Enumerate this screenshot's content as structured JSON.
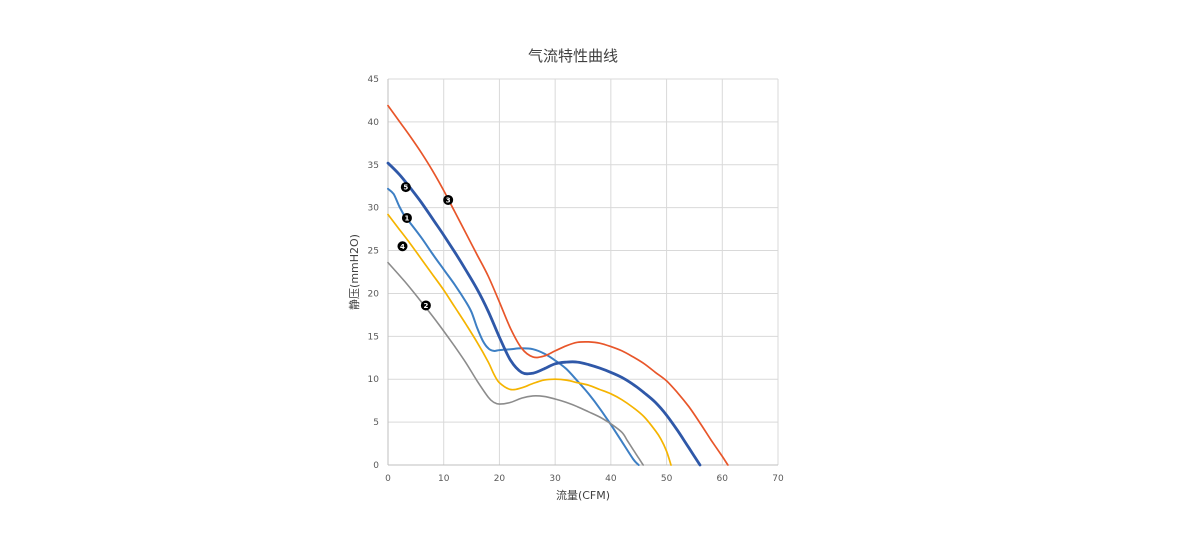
{
  "chart_data": {
    "type": "line",
    "title": "气流特性曲线",
    "xlabel": "流量(CFM)",
    "ylabel": "静压(mmH2O)",
    "xlim": [
      0,
      70
    ],
    "ylim": [
      0,
      45
    ],
    "x_ticks": [
      "0",
      "10",
      "20",
      "30",
      "40",
      "50",
      "60",
      "70"
    ],
    "y_ticks": [
      "0",
      "5",
      "10",
      "15",
      "20",
      "25",
      "30",
      "35",
      "40",
      "45"
    ],
    "grid": true,
    "legend": "none",
    "series": [
      {
        "marker": "1",
        "color": "#3d7fc4",
        "points": [
          [
            0,
            32.2
          ],
          [
            1,
            31.6
          ],
          [
            2,
            30.2
          ],
          [
            3,
            29
          ],
          [
            4,
            28.2
          ],
          [
            6,
            26.5
          ],
          [
            8,
            24.6
          ],
          [
            10,
            22.8
          ],
          [
            12,
            21
          ],
          [
            14,
            19
          ],
          [
            15,
            17.8
          ],
          [
            16,
            16
          ],
          [
            17,
            14.5
          ],
          [
            18,
            13.6
          ],
          [
            19,
            13.3
          ],
          [
            20,
            13.4
          ],
          [
            22,
            13.5
          ],
          [
            24,
            13.6
          ],
          [
            26,
            13.5
          ],
          [
            28,
            13
          ],
          [
            30,
            12.2
          ],
          [
            32,
            11.2
          ],
          [
            34,
            9.8
          ],
          [
            36,
            8.3
          ],
          [
            38,
            6.6
          ],
          [
            40,
            4.7
          ],
          [
            42,
            2.7
          ],
          [
            44,
            0.7
          ],
          [
            45,
            0
          ]
        ]
      },
      {
        "marker": "2",
        "color": "#8c8c8c",
        "points": [
          [
            0,
            23.6
          ],
          [
            3,
            21.4
          ],
          [
            6,
            19
          ],
          [
            9,
            16.5
          ],
          [
            12,
            13.8
          ],
          [
            14,
            11.9
          ],
          [
            16,
            9.8
          ],
          [
            18,
            7.9
          ],
          [
            19,
            7.3
          ],
          [
            20,
            7.1
          ],
          [
            22,
            7.3
          ],
          [
            24,
            7.8
          ],
          [
            26,
            8.05
          ],
          [
            28,
            8
          ],
          [
            30,
            7.7
          ],
          [
            32,
            7.3
          ],
          [
            34,
            6.8
          ],
          [
            36,
            6.2
          ],
          [
            38,
            5.6
          ],
          [
            40,
            4.8
          ],
          [
            42,
            3.8
          ],
          [
            43,
            2.8
          ],
          [
            44,
            1.8
          ],
          [
            45,
            0.8
          ],
          [
            45.8,
            0
          ]
        ]
      },
      {
        "marker": "3",
        "color": "#e8562a",
        "points": [
          [
            0,
            41.9
          ],
          [
            2,
            40.1
          ],
          [
            4,
            38.3
          ],
          [
            6,
            36.4
          ],
          [
            8,
            34.3
          ],
          [
            10,
            32
          ],
          [
            12,
            29.5
          ],
          [
            14,
            27
          ],
          [
            16,
            24.5
          ],
          [
            18,
            22
          ],
          [
            20,
            19
          ],
          [
            22,
            15.9
          ],
          [
            24,
            13.6
          ],
          [
            26,
            12.6
          ],
          [
            28,
            12.7
          ],
          [
            30,
            13.3
          ],
          [
            32,
            13.9
          ],
          [
            34,
            14.3
          ],
          [
            36,
            14.35
          ],
          [
            38,
            14.2
          ],
          [
            40,
            13.8
          ],
          [
            42,
            13.3
          ],
          [
            44,
            12.6
          ],
          [
            46,
            11.8
          ],
          [
            48,
            10.8
          ],
          [
            50,
            9.8
          ],
          [
            52,
            8.4
          ],
          [
            54,
            6.8
          ],
          [
            56,
            4.9
          ],
          [
            58,
            2.9
          ],
          [
            60,
            1
          ],
          [
            61,
            0
          ]
        ]
      },
      {
        "marker": "4",
        "color": "#f5b400",
        "points": [
          [
            0,
            29.2
          ],
          [
            2,
            27.5
          ],
          [
            4,
            25.8
          ],
          [
            6,
            24
          ],
          [
            8,
            22.2
          ],
          [
            10,
            20.4
          ],
          [
            12,
            18.4
          ],
          [
            14,
            16.4
          ],
          [
            16,
            14.3
          ],
          [
            18,
            12
          ],
          [
            19,
            10.6
          ],
          [
            20,
            9.6
          ],
          [
            22,
            8.8
          ],
          [
            24,
            9
          ],
          [
            26,
            9.5
          ],
          [
            28,
            9.9
          ],
          [
            30,
            10
          ],
          [
            32,
            9.9
          ],
          [
            34,
            9.6
          ],
          [
            36,
            9.3
          ],
          [
            38,
            8.8
          ],
          [
            40,
            8.3
          ],
          [
            42,
            7.6
          ],
          [
            44,
            6.7
          ],
          [
            46,
            5.6
          ],
          [
            48,
            4
          ],
          [
            49,
            3
          ],
          [
            50,
            1.6
          ],
          [
            50.8,
            0
          ]
        ]
      },
      {
        "marker": "5",
        "color": "#2f58a8",
        "points": [
          [
            0,
            35.2
          ],
          [
            2,
            33.9
          ],
          [
            4,
            32.3
          ],
          [
            6,
            30.6
          ],
          [
            8,
            28.7
          ],
          [
            10,
            26.8
          ],
          [
            12,
            24.8
          ],
          [
            14,
            22.7
          ],
          [
            16,
            20.5
          ],
          [
            18,
            17.9
          ],
          [
            20,
            14.9
          ],
          [
            22,
            12.2
          ],
          [
            24,
            10.8
          ],
          [
            26,
            10.7
          ],
          [
            28,
            11.2
          ],
          [
            30,
            11.8
          ],
          [
            32,
            12
          ],
          [
            34,
            12
          ],
          [
            36,
            11.7
          ],
          [
            38,
            11.3
          ],
          [
            40,
            10.8
          ],
          [
            42,
            10.2
          ],
          [
            44,
            9.4
          ],
          [
            46,
            8.4
          ],
          [
            48,
            7.3
          ],
          [
            50,
            5.8
          ],
          [
            52,
            4
          ],
          [
            54,
            2
          ],
          [
            56,
            0
          ]
        ]
      }
    ],
    "markers": [
      {
        "label": "1",
        "x": 3.4,
        "y": 28.8
      },
      {
        "label": "2",
        "x": 6.8,
        "y": 18.6
      },
      {
        "label": "3",
        "x": 10.8,
        "y": 30.9
      },
      {
        "label": "4",
        "x": 2.6,
        "y": 25.5
      },
      {
        "label": "5",
        "x": 3.2,
        "y": 32.4
      }
    ]
  }
}
